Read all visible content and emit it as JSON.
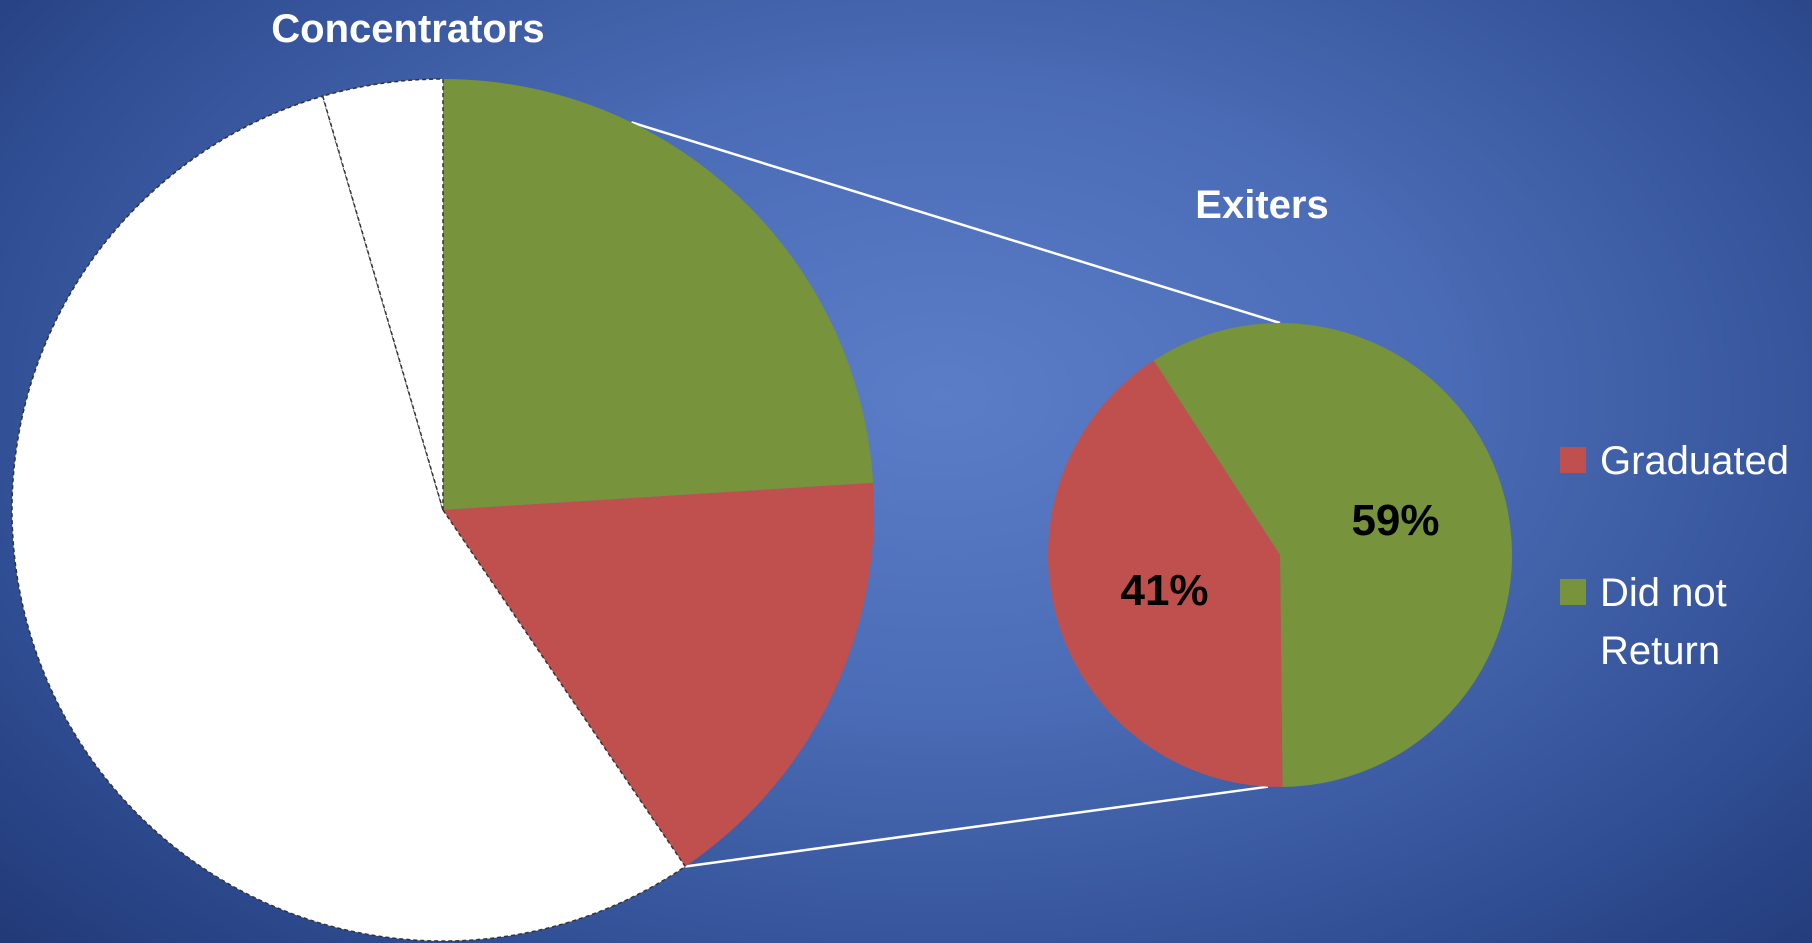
{
  "chart_data": [
    {
      "type": "pie",
      "title": "Concentrators",
      "slices": [
        {
          "name": "Did not Return",
          "value": 24,
          "color": "#77933c",
          "style": "solid"
        },
        {
          "name": "Graduated",
          "value": 16.5,
          "color": "#c0504d",
          "style": "solid"
        },
        {
          "name": "",
          "value": 55,
          "color": "#ffffff",
          "style": "dashed"
        },
        {
          "name": "",
          "value": 4.5,
          "color": "#ffffff",
          "style": "dashed"
        }
      ],
      "exploded_slices": [
        "Did not Return",
        "Graduated"
      ]
    },
    {
      "type": "pie",
      "title": "Exiters",
      "slices": [
        {
          "name": "Did not Return",
          "value": 59,
          "label": "59%",
          "color": "#77933c"
        },
        {
          "name": "Graduated",
          "value": 41,
          "label": "41%",
          "color": "#c0504d"
        }
      ]
    }
  ],
  "legend": {
    "placement": "right",
    "items": [
      {
        "label": "Graduated",
        "color": "#c0504d"
      },
      {
        "label_lines": [
          "Did not",
          "Return"
        ],
        "color": "#77933c"
      }
    ]
  },
  "colors": {
    "background": "#4a6bb5",
    "connector": "#ffffff"
  }
}
